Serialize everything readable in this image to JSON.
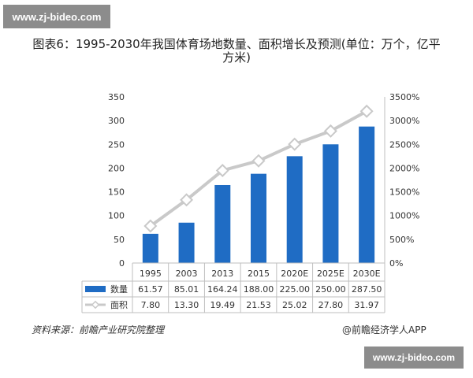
{
  "watermark_top": "www.zj-bideo.com",
  "watermark_bottom": "www.zj-bideo.com",
  "title": "图表6：1995-2030年我国体育场地数量、面积增长及预测(单位：万个，亿平方米)",
  "source_note": "资料来源：前瞻产业研究院整理",
  "credit": "@前瞻经济学人APP",
  "chart_data": {
    "type": "bar",
    "categories": [
      "1995",
      "2003",
      "2013",
      "2015",
      "2020E",
      "2025E",
      "2030E"
    ],
    "series": [
      {
        "name": "数量",
        "type": "bar",
        "axis": "left",
        "color": "#1f6cc4",
        "values": [
          61.57,
          85.01,
          164.24,
          188.0,
          225.0,
          250.0,
          287.5
        ],
        "table_labels": [
          "61.57",
          "85.01",
          "164.24",
          "188.00",
          "225.00",
          "250.00",
          "287.50"
        ]
      },
      {
        "name": "面积",
        "type": "line",
        "axis": "right",
        "color": "#c9c9c9",
        "values": [
          7.8,
          13.3,
          19.49,
          21.53,
          25.02,
          27.8,
          31.97
        ],
        "table_labels": [
          "7.80",
          "13.30",
          "19.49",
          "21.53",
          "25.02",
          "27.80",
          "31.97"
        ],
        "axis_values_pct": [
          780,
          1330,
          1949,
          2153,
          2502,
          2780,
          3197
        ]
      }
    ],
    "y_left": {
      "ylim": [
        0,
        350
      ],
      "ticks": [
        0,
        50,
        100,
        150,
        200,
        250,
        300,
        350
      ],
      "tick_labels": [
        "0",
        "50",
        "100",
        "150",
        "200",
        "250",
        "300",
        "350"
      ]
    },
    "y_right": {
      "ylim": [
        0,
        3500
      ],
      "ticks": [
        0,
        500,
        1000,
        1500,
        2000,
        2500,
        3000,
        3500
      ],
      "tick_labels": [
        "0%",
        "500%",
        "1000%",
        "1500%",
        "2000%",
        "2500%",
        "3000%",
        "3500%"
      ]
    },
    "grid": false,
    "legend": "data-table"
  }
}
